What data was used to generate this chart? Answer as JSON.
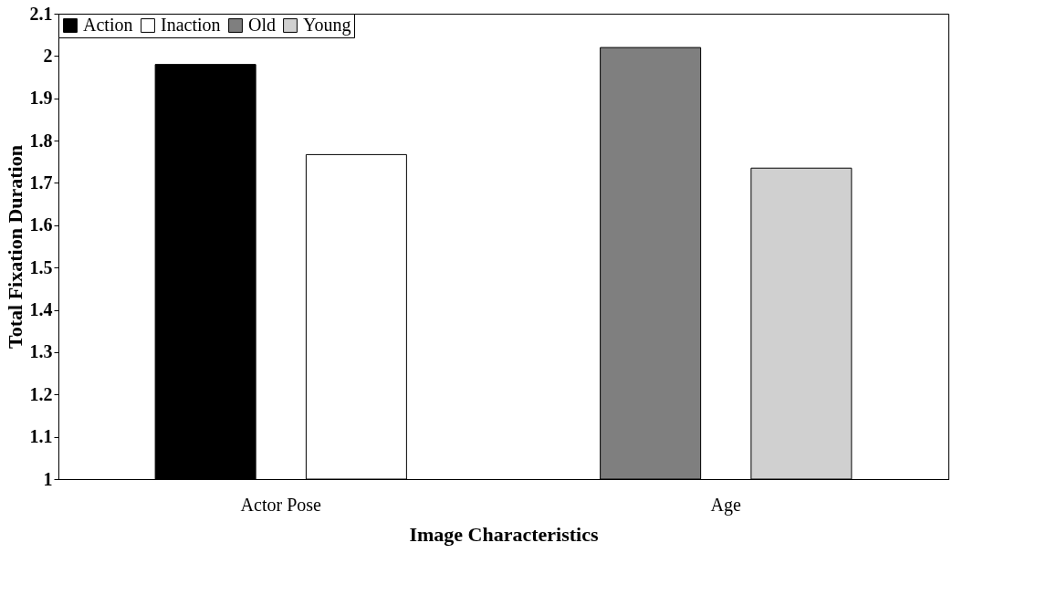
{
  "chart_data": {
    "type": "bar",
    "xlabel": "Image Characteristics",
    "ylabel": "Total Fixation Duration",
    "categories": [
      "Actor Pose",
      "Age"
    ],
    "series": [
      {
        "name": "Action",
        "color": "#000000",
        "values": [
          1.98,
          null
        ]
      },
      {
        "name": "Inaction",
        "color": "#ffffff",
        "values": [
          1.767,
          null
        ]
      },
      {
        "name": "Old",
        "color": "#7f7f7f",
        "values": [
          null,
          2.02
        ]
      },
      {
        "name": "Young",
        "color": "#d0d0d0",
        "values": [
          null,
          1.735
        ]
      }
    ],
    "ylim": [
      1,
      2.1
    ],
    "yticks": [
      1,
      1.1,
      1.2,
      1.3,
      1.4,
      1.5,
      1.6,
      1.7,
      1.8,
      1.9,
      2,
      2.1
    ],
    "grid": false,
    "legend": "top left"
  }
}
